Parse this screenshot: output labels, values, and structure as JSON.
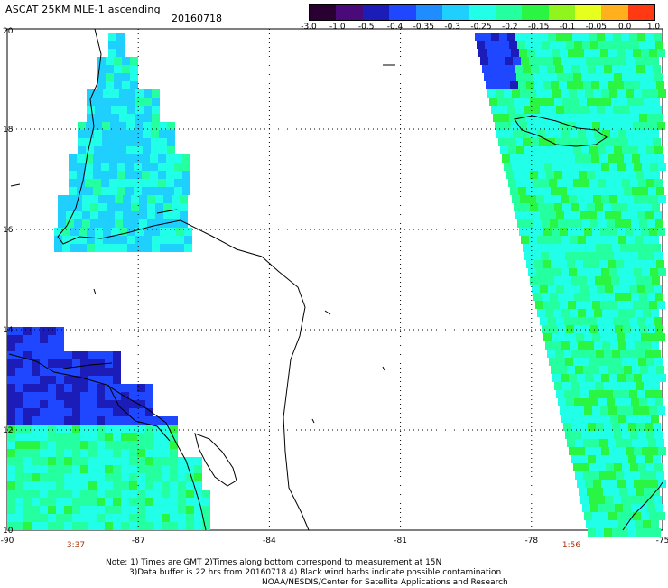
{
  "title": "ASCAT 25KM MLE-1 ascending",
  "date": "20160718",
  "colorbar": {
    "labels": [
      "-3.0",
      "-1.0",
      "-0.5",
      "-0.4",
      "-0.35",
      "-0.3",
      "-0.25",
      "-0.2",
      "-0.15",
      "-0.1",
      "-0.05",
      "0.0",
      "1.0"
    ],
    "colors": [
      "#2a0033",
      "#4b0a7a",
      "#1c1cb8",
      "#1f47ff",
      "#1f8cff",
      "#1fd0ff",
      "#22ffe8",
      "#24ffa0",
      "#2af542",
      "#8ff51c",
      "#e6ff1c",
      "#ffb01c",
      "#ff3a12"
    ]
  },
  "axes": {
    "lon_ticks": [
      "-90",
      "-87",
      "-84",
      "-81",
      "-78",
      "-75"
    ],
    "lat_ticks": [
      "20",
      "18",
      "16",
      "14",
      "12",
      "10"
    ]
  },
  "times": [
    "3:37",
    "1:56"
  ],
  "time_color": "#b03000",
  "footer": {
    "line1": "Note: 1) Times are GMT 2)Times along bottom correspond to measurement at 15N",
    "line2": "3)Data buffer is 22 hrs from 20160718 4) Black wind barbs indicate possible contamination",
    "line3": "NOAA/NESDIS/Center for Satellite Applications and Research"
  }
}
